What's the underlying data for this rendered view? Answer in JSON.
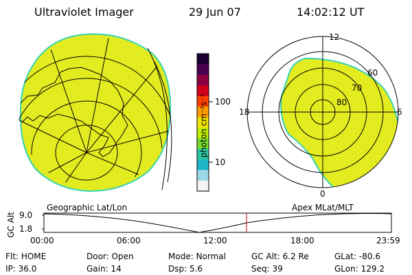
{
  "header": {
    "instrument": "Ultraviolet Imager",
    "date": "29 Jun 07",
    "time": "14:02:12 UT"
  },
  "colorbar": {
    "unit_label": "photon cm⁻²s⁻¹",
    "tick_labels": [
      "100",
      "10"
    ],
    "scale": "log",
    "colors": [
      "#1a0030",
      "#4a0050",
      "#8a0040",
      "#d0001a",
      "#ff4000",
      "#ff9a00",
      "#f2e400",
      "#bfee00",
      "#78dd2a",
      "#2ec7a0",
      "#20b6c9",
      "#9ad8e6",
      "#f4f4f4"
    ]
  },
  "left_map": {
    "label": "Geographic Lat/Lon",
    "fill_color": "#e4ec20",
    "edge_color": "#34d3b4"
  },
  "right_map": {
    "label": "Apex MLat/MLT",
    "mlt_labels": {
      "top": "12",
      "right": "6",
      "bottom": "0",
      "left": "18"
    },
    "mlat_labels": [
      "60",
      "70",
      "80"
    ],
    "fill_color": "#e4ec20",
    "edge_color": "#34d3b4"
  },
  "altitude_plot": {
    "ylabel": "GC Alt",
    "y_ticks": [
      "9.0",
      "1.8"
    ],
    "x_ticks": [
      "00:00",
      "06:00",
      "12:00",
      "18:00",
      "23:59"
    ],
    "marker_time": "14:02",
    "marker_color": "#cc0000"
  },
  "status": {
    "row1": [
      {
        "label": "Flt:",
        "value": "HOME"
      },
      {
        "label": "Door:",
        "value": "Open"
      },
      {
        "label": "Mode:",
        "value": "Normal"
      },
      {
        "label": "GC Alt:",
        "value": "6.2 Re"
      },
      {
        "label": "GLat:",
        "value": "-80.6"
      }
    ],
    "row2": [
      {
        "label": "IP:",
        "value": "36.0"
      },
      {
        "label": "Gain:",
        "value": "14"
      },
      {
        "label": "Dsp:",
        "value": "5.6"
      },
      {
        "label": "Seq:",
        "value": "39"
      },
      {
        "label": "GLon:",
        "value": "129.2"
      }
    ]
  }
}
